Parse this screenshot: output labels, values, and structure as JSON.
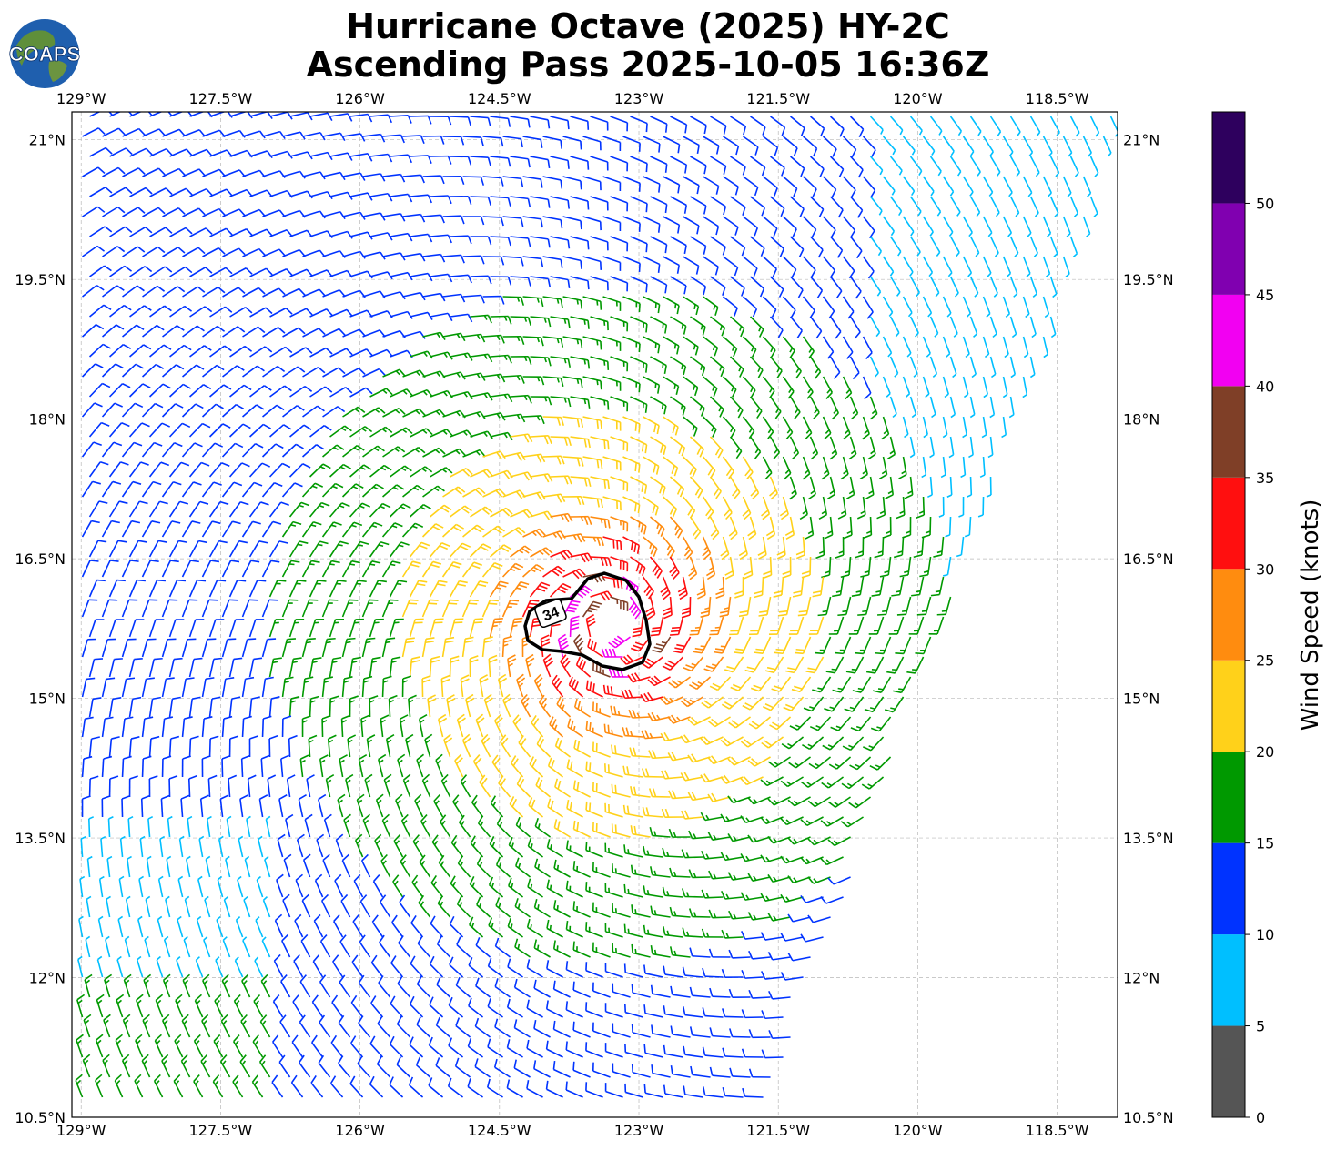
{
  "title": {
    "line1": "Hurricane Octave (2025) HY-2C",
    "line2": "Ascending Pass 2025-10-05 16:36Z"
  },
  "logo": {
    "text": "COAPS"
  },
  "map": {
    "lon_labels": [
      "129°W",
      "127.5°W",
      "126°W",
      "124.5°W",
      "123°W",
      "121.5°W",
      "120°W",
      "118.5°W"
    ],
    "lat_labels": [
      "21°N",
      "19.5°N",
      "18°N",
      "16.5°N",
      "15°N",
      "13.5°N",
      "12°N",
      "10.5°N"
    ],
    "lon_values": [
      -129,
      -127.5,
      -126,
      -124.5,
      -123,
      -121.5,
      -120,
      -118.5
    ],
    "lat_values": [
      21,
      19.5,
      18,
      16.5,
      15,
      13.5,
      12,
      10.5
    ],
    "lon_range": [
      -129.1,
      -117.85
    ],
    "lat_range": [
      10.5,
      21.3
    ],
    "storm_center": {
      "lon": -123.3,
      "lat": 15.8
    },
    "contour_label": "34",
    "gridlines": true
  },
  "colorbar": {
    "label": "Wind Speed (knots)",
    "ticks": [
      "0",
      "5",
      "10",
      "15",
      "20",
      "25",
      "30",
      "35",
      "40",
      "45",
      "50"
    ],
    "bounds": [
      0,
      5,
      10,
      15,
      20,
      25,
      30,
      35,
      40,
      45,
      50,
      55
    ],
    "colors": [
      "#555555",
      "#00bfff",
      "#0033ff",
      "#009900",
      "#ffd11a",
      "#ff8c0f",
      "#ff0f0f",
      "#7f3f27",
      "#f200f2",
      "#8000b0",
      "#2e005e"
    ]
  }
}
